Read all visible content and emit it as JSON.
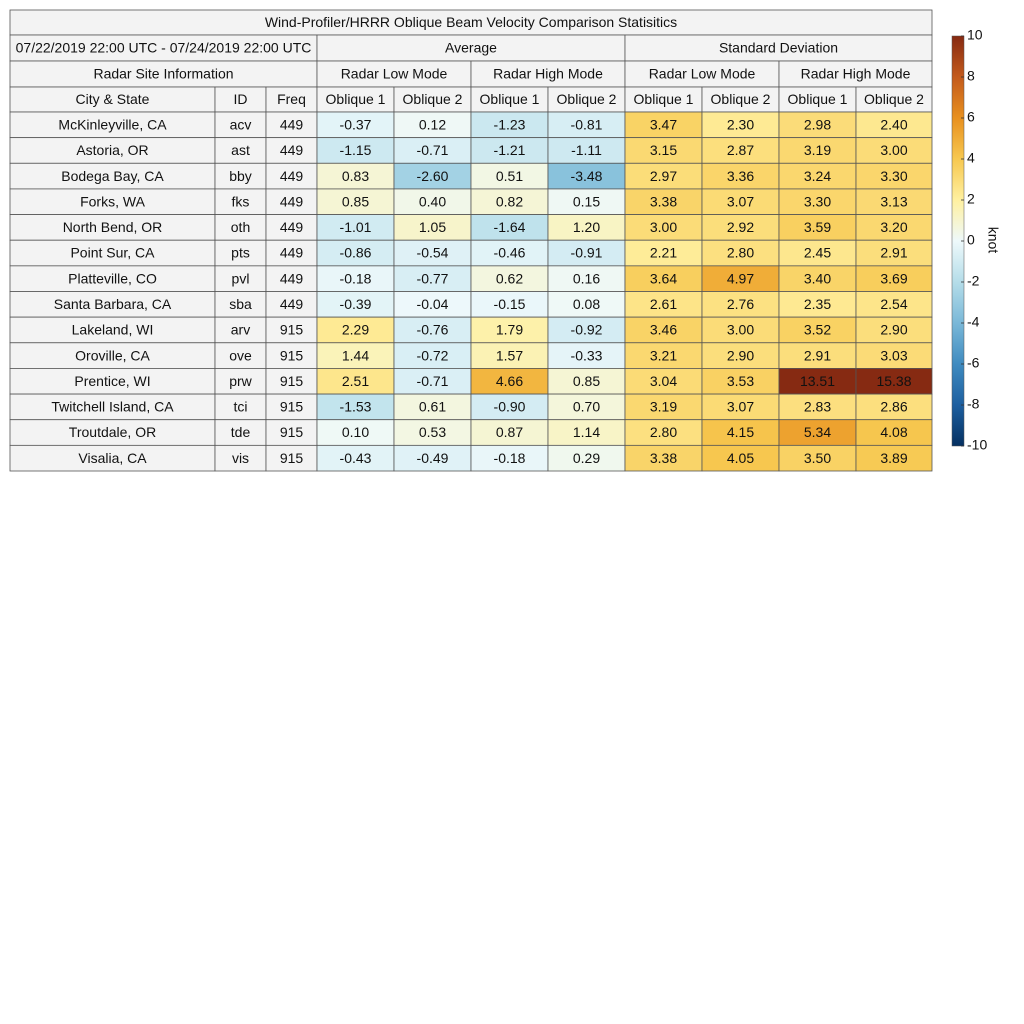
{
  "header": {
    "title": "Wind-Profiler/HRRR Oblique Beam Velocity Comparison Statisitics",
    "period": "07/22/2019 22:00 UTC - 07/24/2019 22:00 UTC",
    "site_info": "Radar Site Information",
    "groups": [
      "Average",
      "Standard Deviation"
    ],
    "modes": [
      "Radar Low Mode",
      "Radar High Mode"
    ],
    "columns": [
      "City & State",
      "ID",
      "Freq"
    ],
    "beams": [
      "Oblique 1",
      "Oblique 2"
    ]
  },
  "table": {
    "rows": [
      [
        "McKinleyville, CA",
        "acv",
        449,
        "-0.37",
        "0.12",
        "-1.23",
        "-0.81",
        "3.47",
        "2.30",
        "2.98",
        "2.40"
      ],
      [
        "Astoria, OR",
        "ast",
        449,
        "-1.15",
        "-0.71",
        "-1.21",
        "-1.11",
        "3.15",
        "2.87",
        "3.19",
        "3.00"
      ],
      [
        "Bodega Bay, CA",
        "bby",
        449,
        "0.83",
        "-2.60",
        "0.51",
        "-3.48",
        "2.97",
        "3.36",
        "3.24",
        "3.30"
      ],
      [
        "Forks, WA",
        "fks",
        449,
        "0.85",
        "0.40",
        "0.82",
        "0.15",
        "3.38",
        "3.07",
        "3.30",
        "3.13"
      ],
      [
        "North Bend, OR",
        "oth",
        449,
        "-1.01",
        "1.05",
        "-1.64",
        "1.20",
        "3.00",
        "2.92",
        "3.59",
        "3.20"
      ],
      [
        "Point Sur, CA",
        "pts",
        449,
        "-0.86",
        "-0.54",
        "-0.46",
        "-0.91",
        "2.21",
        "2.80",
        "2.45",
        "2.91"
      ],
      [
        "Platteville, CO",
        "pvl",
        449,
        "-0.18",
        "-0.77",
        "0.62",
        "0.16",
        "3.64",
        "4.97",
        "3.40",
        "3.69"
      ],
      [
        "Santa Barbara, CA",
        "sba",
        449,
        "-0.39",
        "-0.04",
        "-0.15",
        "0.08",
        "2.61",
        "2.76",
        "2.35",
        "2.54"
      ],
      [
        "Lakeland, WI",
        "arv",
        915,
        "2.29",
        "-0.76",
        "1.79",
        "-0.92",
        "3.46",
        "3.00",
        "3.52",
        "2.90"
      ],
      [
        "Oroville, CA",
        "ove",
        915,
        "1.44",
        "-0.72",
        "1.57",
        "-0.33",
        "3.21",
        "2.90",
        "2.91",
        "3.03"
      ],
      [
        "Prentice, WI",
        "prw",
        915,
        "2.51",
        "-0.71",
        "4.66",
        "0.85",
        "3.04",
        "3.53",
        "13.51",
        "15.38"
      ],
      [
        "Twitchell Island, CA",
        "tci",
        915,
        "-1.53",
        "0.61",
        "-0.90",
        "0.70",
        "3.19",
        "3.07",
        "2.83",
        "2.86"
      ],
      [
        "Troutdale, OR",
        "tde",
        915,
        "0.10",
        "0.53",
        "0.87",
        "1.14",
        "2.80",
        "4.15",
        "5.34",
        "4.08"
      ],
      [
        "Visalia, CA",
        "vis",
        915,
        "-0.43",
        "-0.49",
        "-0.18",
        "0.29",
        "3.38",
        "4.05",
        "3.50",
        "3.89"
      ]
    ]
  },
  "colorbar": {
    "label": "knot",
    "lim": [
      -10,
      10
    ],
    "ticks": [
      10,
      8,
      6,
      4,
      2,
      0,
      -2,
      -4,
      -6,
      -8,
      -10
    ],
    "colors": [
      "#053061",
      "#1d5fa0",
      "#3f8bc0",
      "#7ab8d8",
      "#b5dde9",
      "#eef9fb",
      "#fff0a0",
      "#f7c850",
      "#e8901f",
      "#c35a1c",
      "#862a12"
    ]
  }
}
